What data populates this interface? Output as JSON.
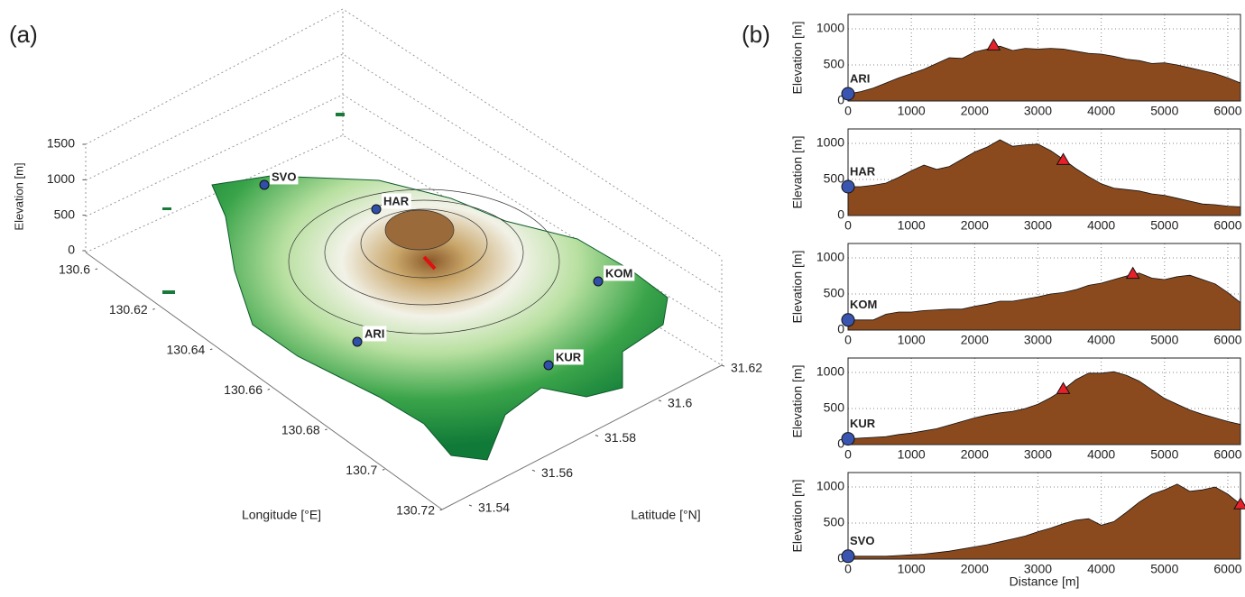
{
  "chart_data": [
    {
      "type": "terrain",
      "panel": "(a)",
      "xlabel": "Longitude [°E]",
      "ylabel": "Latitude [°N]",
      "zlabel": "Elevation [m]",
      "xlim": [
        130.6,
        130.72
      ],
      "xticks": [
        130.6,
        130.62,
        130.64,
        130.66,
        130.68,
        130.7,
        130.72
      ],
      "ylim": [
        31.54,
        31.62
      ],
      "yticks": [
        31.54,
        31.56,
        31.58,
        31.6,
        31.62
      ],
      "zlim": [
        0,
        1500
      ],
      "zticks": [
        0,
        500,
        1000,
        1500
      ],
      "stations": [
        "SVO",
        "HAR",
        "KOM",
        "ARI",
        "KUR"
      ]
    },
    {
      "type": "area",
      "panel": "(b)",
      "ylabel": "Elevation [m]",
      "color": "#8b4a1e",
      "x": [
        0,
        200,
        400,
        600,
        800,
        1000,
        1200,
        1400,
        1600,
        1800,
        2000,
        2200,
        2400,
        2600,
        2800,
        3000,
        3200,
        3400,
        3600,
        3800,
        4000,
        4200,
        4400,
        4600,
        4800,
        5000,
        5200,
        5400,
        5600,
        5800,
        6000,
        6200
      ],
      "values": [
        100,
        130,
        180,
        250,
        320,
        380,
        440,
        520,
        600,
        590,
        680,
        720,
        760,
        700,
        730,
        720,
        730,
        720,
        690,
        660,
        650,
        620,
        580,
        560,
        520,
        530,
        500,
        460,
        420,
        380,
        320,
        250
      ],
      "xlim": [
        0,
        6200
      ],
      "xticks": [
        0,
        1000,
        2000,
        3000,
        4000,
        5000,
        6000
      ],
      "ylim": [
        0,
        1200
      ],
      "yticks": [
        0,
        500,
        1000
      ],
      "grid": true,
      "station": {
        "name": "ARI",
        "x": 0,
        "y": 100
      },
      "vent": {
        "x": 2300,
        "y": 770
      }
    },
    {
      "type": "area",
      "ylabel": "Elevation [m]",
      "color": "#8b4a1e",
      "x": [
        0,
        200,
        400,
        600,
        800,
        1000,
        1200,
        1400,
        1600,
        1800,
        2000,
        2200,
        2400,
        2600,
        2800,
        3000,
        3200,
        3400,
        3600,
        3800,
        4000,
        4200,
        4400,
        4600,
        4800,
        5000,
        5200,
        5400,
        5600,
        5800,
        6000,
        6200
      ],
      "values": [
        400,
        400,
        420,
        450,
        530,
        620,
        700,
        640,
        680,
        780,
        880,
        950,
        1050,
        960,
        980,
        990,
        900,
        780,
        650,
        540,
        440,
        380,
        360,
        340,
        300,
        280,
        240,
        200,
        160,
        150,
        130,
        120
      ],
      "xlim": [
        0,
        6200
      ],
      "xticks": [
        0,
        1000,
        2000,
        3000,
        4000,
        5000,
        6000
      ],
      "ylim": [
        0,
        1200
      ],
      "yticks": [
        0,
        500,
        1000
      ],
      "grid": true,
      "station": {
        "name": "HAR",
        "x": 0,
        "y": 400
      },
      "vent": {
        "x": 3400,
        "y": 770
      }
    },
    {
      "type": "area",
      "ylabel": "Elevation [m]",
      "color": "#8b4a1e",
      "x": [
        0,
        200,
        400,
        600,
        800,
        1000,
        1200,
        1400,
        1600,
        1800,
        2000,
        2200,
        2400,
        2600,
        2800,
        3000,
        3200,
        3400,
        3600,
        3800,
        4000,
        4200,
        4400,
        4600,
        4800,
        5000,
        5200,
        5400,
        5600,
        5800,
        6000,
        6200
      ],
      "values": [
        140,
        140,
        140,
        220,
        250,
        250,
        270,
        280,
        290,
        290,
        330,
        360,
        400,
        400,
        430,
        460,
        500,
        520,
        560,
        620,
        650,
        700,
        750,
        790,
        720,
        700,
        740,
        760,
        700,
        640,
        520,
        380
      ],
      "xlim": [
        0,
        6200
      ],
      "xticks": [
        0,
        1000,
        2000,
        3000,
        4000,
        5000,
        6000
      ],
      "ylim": [
        0,
        1200
      ],
      "yticks": [
        0,
        500,
        1000
      ],
      "grid": true,
      "station": {
        "name": "KOM",
        "x": 0,
        "y": 140
      },
      "vent": {
        "x": 4500,
        "y": 780
      }
    },
    {
      "type": "area",
      "ylabel": "Elevation [m]",
      "color": "#8b4a1e",
      "x": [
        0,
        200,
        400,
        600,
        800,
        1000,
        1200,
        1400,
        1600,
        1800,
        2000,
        2200,
        2400,
        2600,
        2800,
        3000,
        3200,
        3400,
        3600,
        3800,
        4000,
        4200,
        4400,
        4600,
        4800,
        5000,
        5200,
        5400,
        5600,
        5800,
        6000,
        6200
      ],
      "values": [
        80,
        90,
        100,
        110,
        140,
        160,
        190,
        220,
        270,
        320,
        370,
        410,
        440,
        460,
        500,
        560,
        650,
        760,
        900,
        990,
        990,
        1010,
        960,
        880,
        760,
        640,
        560,
        480,
        420,
        370,
        320,
        280
      ],
      "xlim": [
        0,
        6200
      ],
      "xticks": [
        0,
        1000,
        2000,
        3000,
        4000,
        5000,
        6000
      ],
      "ylim": [
        0,
        1200
      ],
      "yticks": [
        0,
        500,
        1000
      ],
      "grid": true,
      "station": {
        "name": "KUR",
        "x": 0,
        "y": 80
      },
      "vent": {
        "x": 3400,
        "y": 770
      }
    },
    {
      "type": "area",
      "ylabel": "Elevation [m]",
      "xlabel": "Distance [m]",
      "color": "#8b4a1e",
      "x": [
        0,
        200,
        400,
        600,
        800,
        1000,
        1200,
        1400,
        1600,
        1800,
        2000,
        2200,
        2400,
        2600,
        2800,
        3000,
        3200,
        3400,
        3600,
        3800,
        4000,
        4200,
        4400,
        4600,
        4800,
        5000,
        5200,
        5400,
        5600,
        5800,
        6000,
        6200
      ],
      "values": [
        40,
        40,
        40,
        40,
        50,
        60,
        70,
        90,
        110,
        140,
        170,
        200,
        240,
        280,
        320,
        380,
        430,
        490,
        540,
        560,
        470,
        520,
        650,
        790,
        900,
        960,
        1040,
        940,
        960,
        1000,
        900,
        760
      ],
      "xlim": [
        0,
        6200
      ],
      "xticks": [
        0,
        1000,
        2000,
        3000,
        4000,
        5000,
        6000
      ],
      "ylim": [
        0,
        1200
      ],
      "yticks": [
        0,
        500,
        1000
      ],
      "grid": true,
      "station": {
        "name": "SVO",
        "x": 0,
        "y": 40
      },
      "vent": {
        "x": 6200,
        "y": 760
      }
    }
  ]
}
